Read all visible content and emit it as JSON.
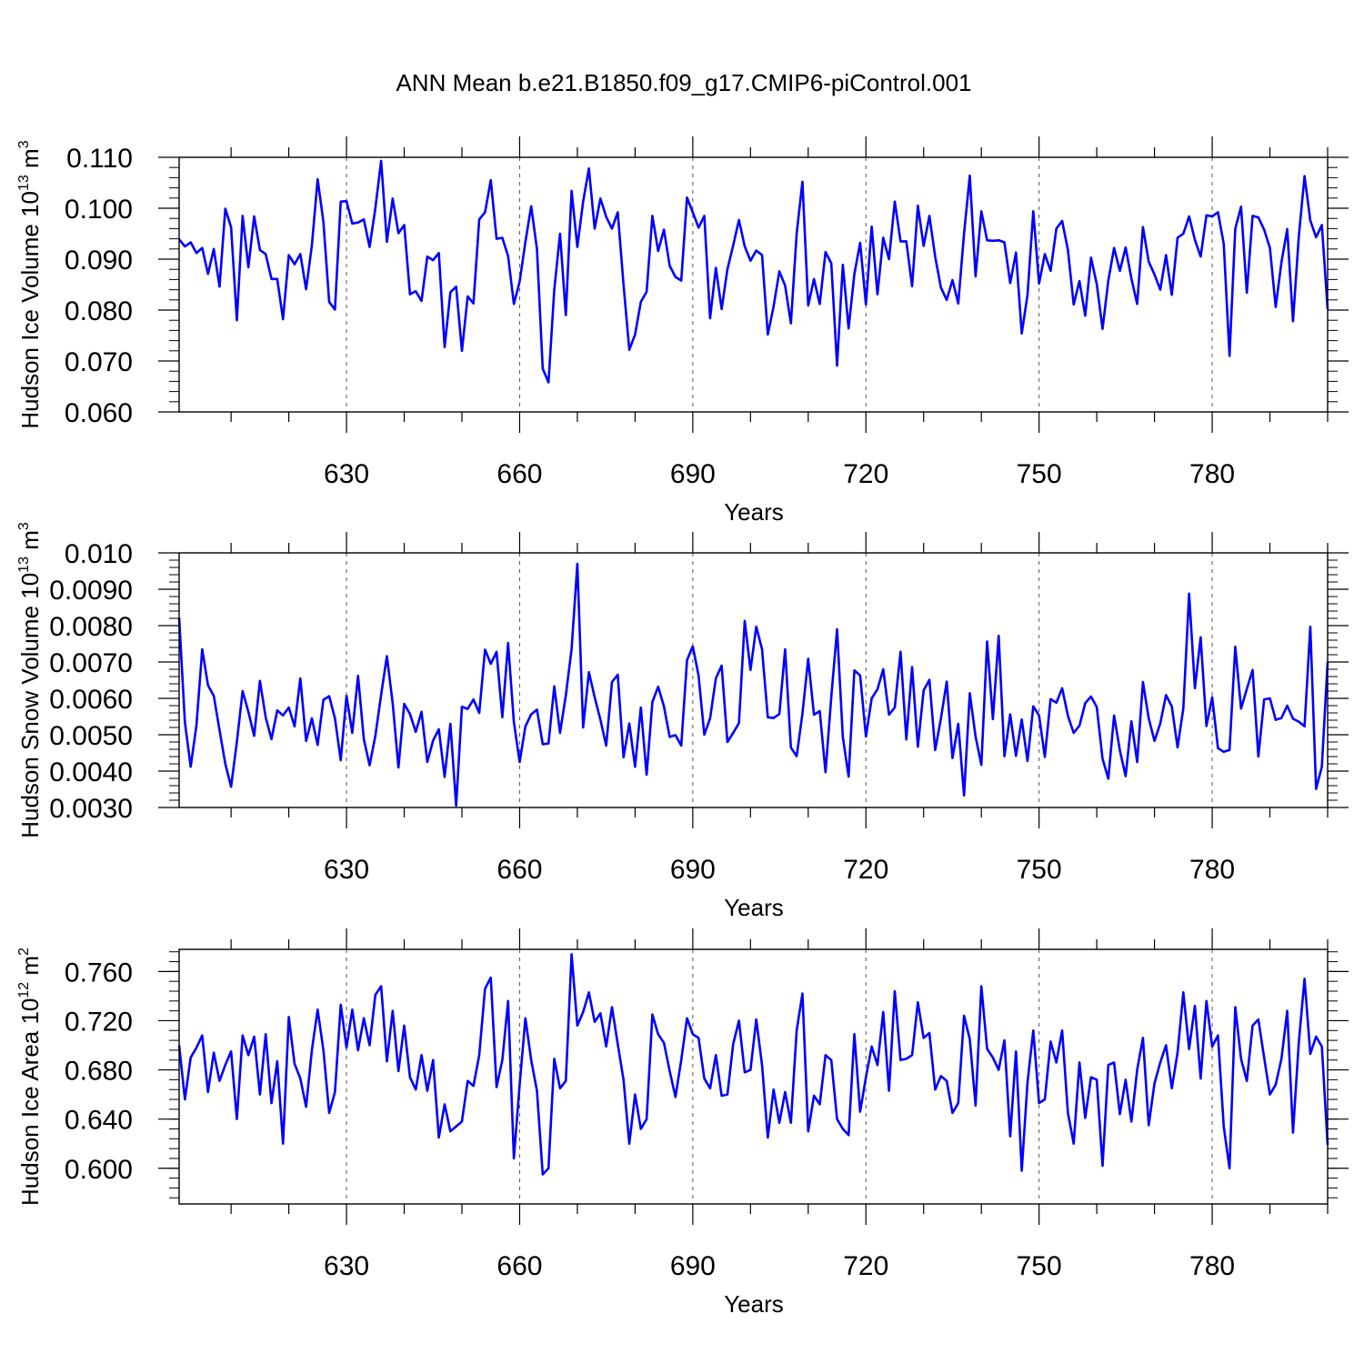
{
  "figure": {
    "title": "ANN Mean b.e21.B1850.f09_g17.CMIP6-piControl.001",
    "line_color": "#0000ff",
    "grid_color": "#555555"
  },
  "chart_data": [
    {
      "type": "line",
      "title": "",
      "xlabel": "Years",
      "ylabel": "Hudson Ice Volume 10",
      "ylabel_exponent": "13",
      "ylabel_unit": "m",
      "ylabel_unit_exponent": "3",
      "xlim": [
        601,
        800
      ],
      "ylim": [
        0.06,
        0.11
      ],
      "xticks": [
        630,
        660,
        690,
        720,
        750,
        780
      ],
      "xtick_labels": [
        "630",
        "660",
        "690",
        "720",
        "750",
        "780"
      ],
      "yticks": [
        0.06,
        0.07,
        0.08,
        0.09,
        0.1,
        0.11
      ],
      "ytick_labels": [
        "0.060",
        "0.070",
        "0.080",
        "0.090",
        "0.100",
        "0.110"
      ],
      "x_start": 601,
      "series": [
        {
          "name": "Hudson Ice Volume",
          "values": [
            0.0939,
            0.0925,
            0.0933,
            0.0912,
            0.0922,
            0.0871,
            0.092,
            0.0846,
            0.0999,
            0.0963,
            0.078,
            0.0985,
            0.0884,
            0.0984,
            0.0918,
            0.091,
            0.0861,
            0.0861,
            0.0782,
            0.0908,
            0.089,
            0.091,
            0.0841,
            0.0927,
            0.1057,
            0.0973,
            0.0816,
            0.0801,
            0.1013,
            0.1014,
            0.097,
            0.0972,
            0.0978,
            0.0924,
            0.1,
            0.1093,
            0.0934,
            0.1019,
            0.0951,
            0.0967,
            0.0831,
            0.0837,
            0.0818,
            0.0905,
            0.0898,
            0.0912,
            0.0727,
            0.0835,
            0.0846,
            0.072,
            0.0827,
            0.0813,
            0.0978,
            0.0992,
            0.1055,
            0.094,
            0.0942,
            0.0906,
            0.0812,
            0.0856,
            0.0934,
            0.1004,
            0.092,
            0.0685,
            0.0658,
            0.084,
            0.095,
            0.079,
            0.1034,
            0.0924,
            0.1013,
            0.1078,
            0.096,
            0.1019,
            0.0983,
            0.096,
            0.0992,
            0.085,
            0.0722,
            0.0752,
            0.0816,
            0.0836,
            0.0985,
            0.0916,
            0.0958,
            0.0887,
            0.0865,
            0.0858,
            0.1021,
            0.0992,
            0.0962,
            0.0985,
            0.0784,
            0.0883,
            0.0802,
            0.088,
            0.0927,
            0.0977,
            0.0925,
            0.0897,
            0.0917,
            0.0908,
            0.0752,
            0.0807,
            0.0876,
            0.0848,
            0.0774,
            0.095,
            0.1052,
            0.0809,
            0.0861,
            0.0812,
            0.0914,
            0.0892,
            0.0691,
            0.0889,
            0.0764,
            0.0871,
            0.0932,
            0.0811,
            0.0964,
            0.0831,
            0.0942,
            0.09,
            0.1013,
            0.0935,
            0.0935,
            0.0847,
            0.1005,
            0.0926,
            0.0985,
            0.0905,
            0.0844,
            0.082,
            0.0859,
            0.0813,
            0.095,
            0.1064,
            0.0866,
            0.0994,
            0.0937,
            0.0936,
            0.0937,
            0.0933,
            0.0853,
            0.0913,
            0.0754,
            0.083,
            0.0994,
            0.0852,
            0.091,
            0.0877,
            0.096,
            0.0975,
            0.0918,
            0.0811,
            0.0857,
            0.0789,
            0.0903,
            0.0851,
            0.0763,
            0.0858,
            0.0922,
            0.0877,
            0.0923,
            0.0862,
            0.0812,
            0.0963,
            0.0895,
            0.087,
            0.084,
            0.0908,
            0.083,
            0.0942,
            0.095,
            0.0984,
            0.0938,
            0.0905,
            0.0986,
            0.0984,
            0.0992,
            0.093,
            0.071,
            0.096,
            0.1003,
            0.0834,
            0.0985,
            0.0982,
            0.0958,
            0.0922,
            0.0806,
            0.0894,
            0.0959,
            0.0778,
            0.0944,
            0.1063,
            0.0976,
            0.0943,
            0.0967,
            0.0802
          ]
        }
      ]
    },
    {
      "type": "line",
      "title": "",
      "xlabel": "Years",
      "ylabel": "Hudson Snow Volume 10",
      "ylabel_exponent": "13",
      "ylabel_unit": "m",
      "ylabel_unit_exponent": "3",
      "xlim": [
        601,
        800
      ],
      "ylim": [
        0.003,
        0.01
      ],
      "xticks": [
        630,
        660,
        690,
        720,
        750,
        780
      ],
      "xtick_labels": [
        "630",
        "660",
        "690",
        "720",
        "750",
        "780"
      ],
      "yticks": [
        0.003,
        0.004,
        0.005,
        0.006,
        0.007,
        0.008,
        0.009,
        0.01
      ],
      "ytick_labels": [
        "0.0030",
        "0.0040",
        "0.0050",
        "0.0060",
        "0.0070",
        "0.0080",
        "0.0090",
        "0.010"
      ],
      "x_start": 601,
      "series": [
        {
          "name": "Hudson Snow Volume",
          "values": [
            0.00822,
            0.00534,
            0.00412,
            0.00526,
            0.00735,
            0.00636,
            0.00607,
            0.00513,
            0.0042,
            0.00357,
            0.0048,
            0.0062,
            0.00563,
            0.00497,
            0.00648,
            0.00548,
            0.00488,
            0.00567,
            0.00553,
            0.00575,
            0.00523,
            0.00655,
            0.00483,
            0.00545,
            0.00472,
            0.00596,
            0.00606,
            0.00545,
            0.0043,
            0.00607,
            0.00505,
            0.00662,
            0.00488,
            0.00416,
            0.00497,
            0.0061,
            0.00716,
            0.00587,
            0.0041,
            0.00585,
            0.00557,
            0.00508,
            0.00563,
            0.00425,
            0.00484,
            0.00515,
            0.00384,
            0.0053,
            0.00305,
            0.00577,
            0.00571,
            0.00597,
            0.0056,
            0.00734,
            0.00695,
            0.00728,
            0.00548,
            0.00752,
            0.00535,
            0.00425,
            0.00523,
            0.00556,
            0.00569,
            0.00474,
            0.00476,
            0.00633,
            0.00505,
            0.00608,
            0.00735,
            0.0097,
            0.0052,
            0.00672,
            0.00603,
            0.00541,
            0.0047,
            0.00645,
            0.00665,
            0.00438,
            0.00531,
            0.00412,
            0.00575,
            0.0039,
            0.0059,
            0.00632,
            0.00578,
            0.00494,
            0.00499,
            0.0047,
            0.00705,
            0.00743,
            0.00663,
            0.005,
            0.00545,
            0.00655,
            0.0069,
            0.0048,
            0.00505,
            0.00532,
            0.00813,
            0.00678,
            0.00797,
            0.00735,
            0.00548,
            0.00546,
            0.00557,
            0.00735,
            0.00465,
            0.00441,
            0.00558,
            0.00709,
            0.00555,
            0.00565,
            0.00397,
            0.00604,
            0.0079,
            0.00494,
            0.00385,
            0.00677,
            0.00663,
            0.00495,
            0.006,
            0.00625,
            0.0068,
            0.00555,
            0.00575,
            0.00728,
            0.00487,
            0.00686,
            0.00467,
            0.00622,
            0.00651,
            0.00458,
            0.00545,
            0.00646,
            0.00436,
            0.0053,
            0.00333,
            0.00614,
            0.00495,
            0.00417,
            0.00756,
            0.00543,
            0.00772,
            0.00441,
            0.00556,
            0.00442,
            0.00542,
            0.00428,
            0.00578,
            0.00553,
            0.00439,
            0.00598,
            0.00588,
            0.00628,
            0.00552,
            0.00505,
            0.00525,
            0.00587,
            0.00605,
            0.00576,
            0.00434,
            0.00379,
            0.00553,
            0.00457,
            0.00386,
            0.00537,
            0.00425,
            0.00645,
            0.00545,
            0.00483,
            0.00531,
            0.00609,
            0.00578,
            0.00465,
            0.00573,
            0.00888,
            0.00628,
            0.00768,
            0.00524,
            0.00603,
            0.00463,
            0.00453,
            0.00458,
            0.00742,
            0.00572,
            0.00626,
            0.00678,
            0.0044,
            0.00597,
            0.006,
            0.00541,
            0.00546,
            0.0058,
            0.00544,
            0.00536,
            0.00523,
            0.00797,
            0.00351,
            0.00412,
            0.007
          ]
        }
      ]
    },
    {
      "type": "line",
      "title": "",
      "xlabel": "Years",
      "ylabel": "Hudson Ice Area 10",
      "ylabel_exponent": "12",
      "ylabel_unit": "m",
      "ylabel_unit_exponent": "2",
      "xlim": [
        601,
        800
      ],
      "ylim": [
        0.571,
        0.778
      ],
      "xticks": [
        630,
        660,
        690,
        720,
        750,
        780
      ],
      "xtick_labels": [
        "630",
        "660",
        "690",
        "720",
        "750",
        "780"
      ],
      "yticks": [
        0.6,
        0.64,
        0.68,
        0.72,
        0.76
      ],
      "ytick_labels": [
        "0.600",
        "0.640",
        "0.680",
        "0.720",
        "0.760"
      ],
      "x_start": 601,
      "series": [
        {
          "name": "Hudson Ice Area",
          "values": [
            0.7,
            0.656,
            0.69,
            0.698,
            0.708,
            0.662,
            0.694,
            0.671,
            0.684,
            0.695,
            0.64,
            0.708,
            0.692,
            0.707,
            0.66,
            0.709,
            0.653,
            0.687,
            0.62,
            0.723,
            0.685,
            0.673,
            0.65,
            0.696,
            0.729,
            0.696,
            0.645,
            0.662,
            0.733,
            0.698,
            0.729,
            0.696,
            0.722,
            0.7,
            0.741,
            0.748,
            0.687,
            0.728,
            0.679,
            0.716,
            0.674,
            0.664,
            0.692,
            0.663,
            0.688,
            0.625,
            0.652,
            0.63,
            0.634,
            0.638,
            0.671,
            0.667,
            0.692,
            0.746,
            0.755,
            0.666,
            0.688,
            0.736,
            0.608,
            0.668,
            0.722,
            0.688,
            0.663,
            0.595,
            0.6,
            0.689,
            0.665,
            0.671,
            0.774,
            0.716,
            0.727,
            0.743,
            0.719,
            0.726,
            0.699,
            0.731,
            0.701,
            0.672,
            0.62,
            0.66,
            0.632,
            0.64,
            0.725,
            0.709,
            0.702,
            0.679,
            0.658,
            0.688,
            0.722,
            0.709,
            0.706,
            0.673,
            0.665,
            0.692,
            0.659,
            0.66,
            0.701,
            0.72,
            0.678,
            0.68,
            0.721,
            0.684,
            0.625,
            0.664,
            0.637,
            0.662,
            0.637,
            0.712,
            0.742,
            0.63,
            0.659,
            0.652,
            0.692,
            0.688,
            0.64,
            0.632,
            0.627,
            0.709,
            0.646,
            0.674,
            0.699,
            0.684,
            0.727,
            0.663,
            0.744,
            0.688,
            0.689,
            0.692,
            0.735,
            0.706,
            0.71,
            0.664,
            0.675,
            0.671,
            0.645,
            0.653,
            0.724,
            0.705,
            0.651,
            0.748,
            0.697,
            0.69,
            0.68,
            0.704,
            0.626,
            0.695,
            0.598,
            0.67,
            0.712,
            0.653,
            0.656,
            0.703,
            0.686,
            0.712,
            0.645,
            0.62,
            0.686,
            0.641,
            0.674,
            0.672,
            0.602,
            0.684,
            0.686,
            0.644,
            0.672,
            0.638,
            0.68,
            0.706,
            0.635,
            0.669,
            0.686,
            0.7,
            0.665,
            0.694,
            0.743,
            0.697,
            0.732,
            0.673,
            0.736,
            0.699,
            0.708,
            0.634,
            0.6,
            0.731,
            0.689,
            0.671,
            0.716,
            0.721,
            0.69,
            0.66,
            0.668,
            0.689,
            0.728,
            0.629,
            0.702,
            0.754,
            0.693,
            0.707,
            0.699,
            0.619
          ]
        }
      ]
    }
  ]
}
